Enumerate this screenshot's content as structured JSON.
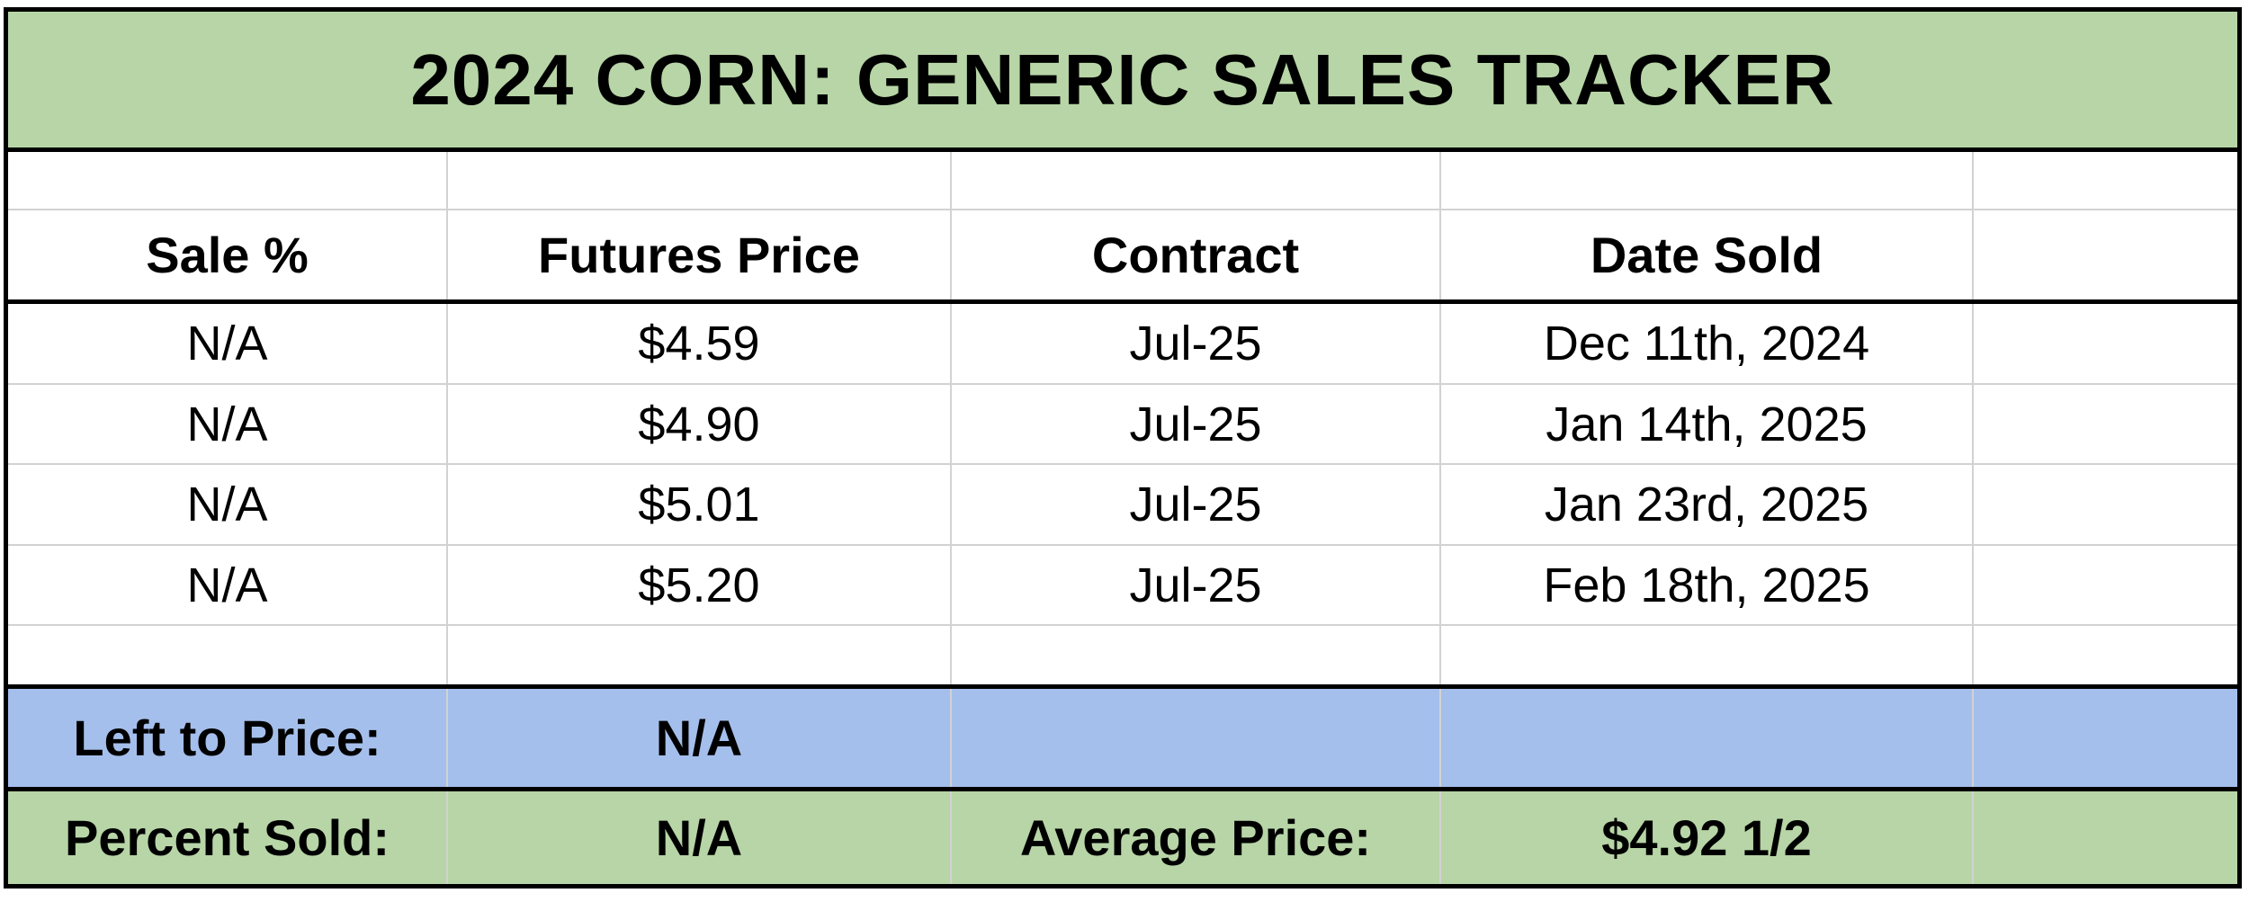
{
  "title": "2024 CORN: GENERIC SALES TRACKER",
  "headers": {
    "sale_pct": "Sale %",
    "futures_price": "Futures Price",
    "contract": "Contract",
    "date_sold": "Date Sold",
    "extra": ""
  },
  "sales": [
    {
      "sale_pct": "N/A",
      "futures_price": "$4.59",
      "contract": "Jul-25",
      "date_sold": "Dec 11th, 2024"
    },
    {
      "sale_pct": "N/A",
      "futures_price": "$4.90",
      "contract": "Jul-25",
      "date_sold": "Jan 14th, 2025"
    },
    {
      "sale_pct": "N/A",
      "futures_price": "$5.01",
      "contract": "Jul-25",
      "date_sold": "Jan 23rd, 2025"
    },
    {
      "sale_pct": "N/A",
      "futures_price": "$5.20",
      "contract": "Jul-25",
      "date_sold": "Feb 18th, 2025"
    }
  ],
  "summary": {
    "left_to_price": {
      "label": "Left to Price:",
      "value": "N/A"
    },
    "percent_sold": {
      "label": "Percent Sold:",
      "value": "N/A"
    },
    "average_price": {
      "label": "Average Price:",
      "value": "$4.92 1/2"
    }
  },
  "colors": {
    "banner_green": "#b7d5a6",
    "summary_green": "#b7d5a6",
    "summary_blue": "#a5bfec",
    "grid_black": "#000000",
    "gridline": "#d2d2d2"
  }
}
